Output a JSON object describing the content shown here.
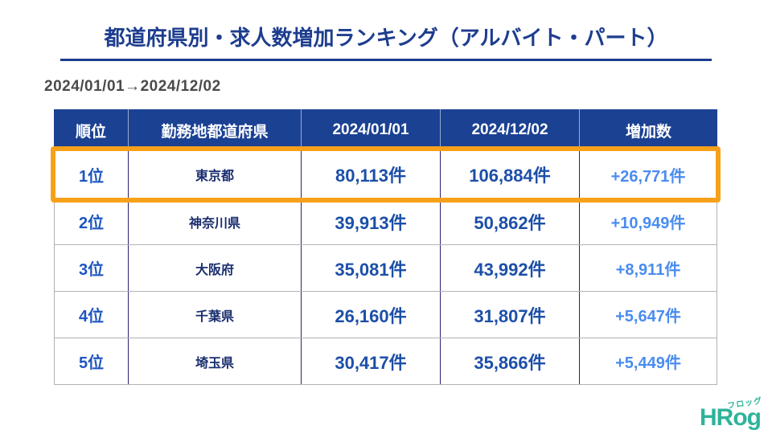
{
  "title": "都道府県別・求人数増加ランキング（アルバイト・パート）",
  "period": "2024/01/01→2024/12/02",
  "table": {
    "headers": [
      "順位",
      "勤務地都道府県",
      "2024/01/01",
      "2024/12/02",
      "増加数"
    ],
    "rows": [
      {
        "rank": "1位",
        "prefecture": "東京都",
        "start": "80,113件",
        "end": "106,884件",
        "increase": "+26,771件",
        "highlighted": true
      },
      {
        "rank": "2位",
        "prefecture": "神奈川県",
        "start": "39,913件",
        "end": "50,862件",
        "increase": "+10,949件",
        "highlighted": false
      },
      {
        "rank": "3位",
        "prefecture": "大阪府",
        "start": "35,081件",
        "end": "43,992件",
        "increase": "+8,911件",
        "highlighted": false
      },
      {
        "rank": "4位",
        "prefecture": "千葉県",
        "start": "26,160件",
        "end": "31,807件",
        "increase": "+5,647件",
        "highlighted": false
      },
      {
        "rank": "5位",
        "prefecture": "埼玉県",
        "start": "30,417件",
        "end": "35,866件",
        "increase": "+5,449件",
        "highlighted": false
      }
    ]
  },
  "logo": {
    "text": "HRog",
    "furigana": "フロッグ"
  },
  "colors": {
    "title_navy": "#1D3D8F",
    "header_bg": "#1B4193",
    "rank_blue": "#1E56C0",
    "prefecture_navy": "#1A2E6E",
    "value_blue": "#1C4FA8",
    "increase_blue": "#4A8CF0",
    "highlight_orange": "#F7A11A",
    "logo_teal": "#2FB39B",
    "period_gray": "#4A4A4A"
  },
  "chart_data": {
    "type": "table",
    "title": "都道府県別・求人数増加ランキング（アルバイト・パート）",
    "period": "2024/01/01→2024/12/02",
    "unit": "件",
    "columns": [
      "順位",
      "勤務地都道府県",
      "2024/01/01",
      "2024/12/02",
      "増加数"
    ],
    "rows": [
      [
        "1位",
        "東京都",
        80113,
        106884,
        26771
      ],
      [
        "2位",
        "神奈川県",
        39913,
        50862,
        10949
      ],
      [
        "3位",
        "大阪府",
        35081,
        43992,
        8911
      ],
      [
        "4位",
        "千葉県",
        26160,
        31807,
        5647
      ],
      [
        "5位",
        "埼玉県",
        30417,
        35866,
        5449
      ]
    ],
    "highlighted_row": 0
  }
}
